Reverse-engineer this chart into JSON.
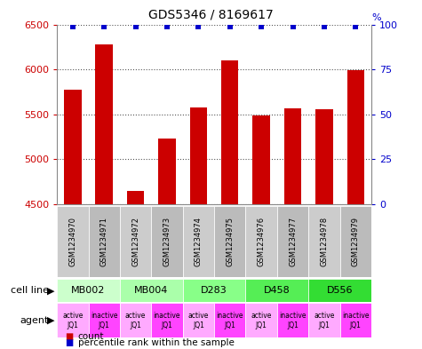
{
  "title": "GDS5346 / 8169617",
  "samples": [
    "GSM1234970",
    "GSM1234971",
    "GSM1234972",
    "GSM1234973",
    "GSM1234974",
    "GSM1234975",
    "GSM1234976",
    "GSM1234977",
    "GSM1234978",
    "GSM1234979"
  ],
  "counts": [
    5770,
    6280,
    4650,
    5230,
    5580,
    6100,
    5490,
    5570,
    5560,
    5990
  ],
  "percentile_ranks": [
    99,
    99,
    99,
    99,
    99,
    99,
    99,
    99,
    99,
    99
  ],
  "ylim_left": [
    4500,
    6500
  ],
  "ylim_right": [
    0,
    100
  ],
  "yticks_left": [
    4500,
    5000,
    5500,
    6000,
    6500
  ],
  "yticks_right": [
    0,
    25,
    50,
    75,
    100
  ],
  "cell_lines": [
    {
      "label": "MB002",
      "span": [
        0,
        2
      ],
      "color": "#ccffcc"
    },
    {
      "label": "MB004",
      "span": [
        2,
        4
      ],
      "color": "#aaffaa"
    },
    {
      "label": "D283",
      "span": [
        4,
        6
      ],
      "color": "#88ff88"
    },
    {
      "label": "D458",
      "span": [
        6,
        8
      ],
      "color": "#55ee55"
    },
    {
      "label": "D556",
      "span": [
        8,
        10
      ],
      "color": "#33dd33"
    }
  ],
  "agents": [
    "active\nJQ1",
    "inactive\nJQ1",
    "active\nJQ1",
    "inactive\nJQ1",
    "active\nJQ1",
    "inactive\nJQ1",
    "active\nJQ1",
    "inactive\nJQ1",
    "active\nJQ1",
    "inactive\nJQ1"
  ],
  "agent_active_color": "#ffaaff",
  "agent_inactive_color": "#ff44ff",
  "bar_color": "#cc0000",
  "dot_color": "#0000cc",
  "bar_width": 0.55,
  "grid_color": "#555555",
  "tick_color_left": "#cc0000",
  "tick_color_right": "#0000cc",
  "gsm_bg_color": "#cccccc",
  "gsm_bg_color2": "#bbbbbb",
  "legend_count_color": "#cc0000",
  "legend_pct_color": "#0000cc"
}
